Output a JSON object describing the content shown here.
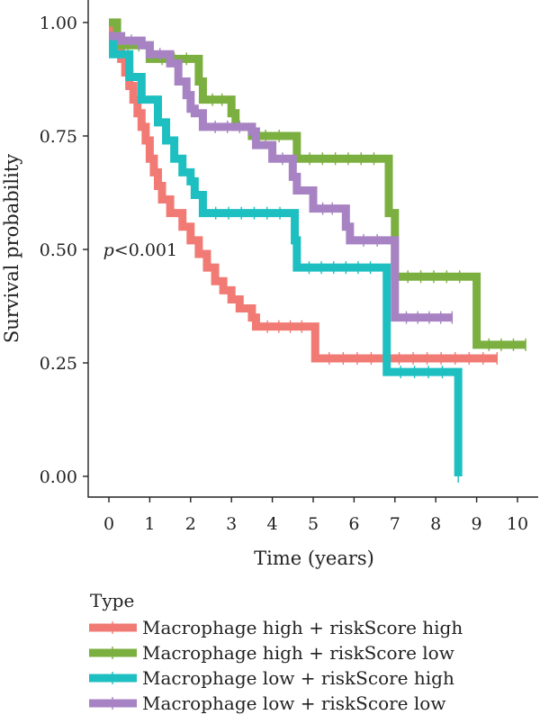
{
  "chart_data": {
    "type": "line",
    "subtype": "kaplan-meier step",
    "xlabel": "Time (years)",
    "ylabel": "Survival probability",
    "xlim": [
      0,
      10
    ],
    "ylim": [
      0,
      1
    ],
    "xticks": [
      "0",
      "1",
      "2",
      "3",
      "4",
      "5",
      "6",
      "7",
      "8",
      "9",
      "10"
    ],
    "yticks": [
      "0.00",
      "0.25",
      "0.50",
      "0.75",
      "1.00"
    ],
    "annotation": {
      "italic": "p",
      "rest": "<0.001",
      "x": 0.3,
      "y": 0.5
    },
    "legend": {
      "title": "Type",
      "placement": "bottom-left"
    },
    "grid": false,
    "series": [
      {
        "name": "Macrophage high + riskScore high",
        "color": "#F17B74",
        "points": [
          [
            0,
            1.0
          ],
          [
            0.1,
            0.97
          ],
          [
            0.2,
            0.95
          ],
          [
            0.3,
            0.92
          ],
          [
            0.4,
            0.89
          ],
          [
            0.5,
            0.86
          ],
          [
            0.6,
            0.83
          ],
          [
            0.7,
            0.8
          ],
          [
            0.8,
            0.77
          ],
          [
            0.9,
            0.74
          ],
          [
            1.0,
            0.7
          ],
          [
            1.1,
            0.67
          ],
          [
            1.2,
            0.64
          ],
          [
            1.3,
            0.61
          ],
          [
            1.5,
            0.58
          ],
          [
            1.8,
            0.55
          ],
          [
            2.0,
            0.52
          ],
          [
            2.2,
            0.49
          ],
          [
            2.4,
            0.46
          ],
          [
            2.6,
            0.43
          ],
          [
            2.8,
            0.41
          ],
          [
            3.0,
            0.39
          ],
          [
            3.2,
            0.37
          ],
          [
            3.5,
            0.35
          ],
          [
            3.6,
            0.33
          ],
          [
            5.0,
            0.33
          ],
          [
            5.05,
            0.26
          ],
          [
            9.5,
            0.26
          ]
        ]
      },
      {
        "name": "Macrophage high + riskScore low",
        "color": "#7BAF3F",
        "points": [
          [
            0,
            1.0
          ],
          [
            0.2,
            0.95
          ],
          [
            1.0,
            0.92
          ],
          [
            2.2,
            0.87
          ],
          [
            2.3,
            0.83
          ],
          [
            3.0,
            0.8
          ],
          [
            3.1,
            0.77
          ],
          [
            3.5,
            0.75
          ],
          [
            4.5,
            0.75
          ],
          [
            4.6,
            0.7
          ],
          [
            6.8,
            0.7
          ],
          [
            6.85,
            0.58
          ],
          [
            7.0,
            0.44
          ],
          [
            8.9,
            0.44
          ],
          [
            9.0,
            0.29
          ],
          [
            10.2,
            0.29
          ]
        ]
      },
      {
        "name": "Macrophage low + riskScore high",
        "color": "#1EBFC1",
        "points": [
          [
            0,
            0.97
          ],
          [
            0.1,
            0.93
          ],
          [
            0.5,
            0.88
          ],
          [
            0.8,
            0.83
          ],
          [
            1.2,
            0.78
          ],
          [
            1.4,
            0.74
          ],
          [
            1.6,
            0.7
          ],
          [
            1.8,
            0.67
          ],
          [
            2.0,
            0.65
          ],
          [
            2.1,
            0.62
          ],
          [
            2.3,
            0.58
          ],
          [
            4.5,
            0.58
          ],
          [
            4.55,
            0.52
          ],
          [
            4.6,
            0.46
          ],
          [
            6.7,
            0.46
          ],
          [
            6.8,
            0.23
          ],
          [
            8.5,
            0.23
          ],
          [
            8.55,
            0.0
          ]
        ]
      },
      {
        "name": "Macrophage low + riskScore low",
        "color": "#A883C3",
        "points": [
          [
            0,
            0.97
          ],
          [
            0.3,
            0.96
          ],
          [
            0.8,
            0.95
          ],
          [
            1.0,
            0.93
          ],
          [
            1.5,
            0.91
          ],
          [
            1.7,
            0.87
          ],
          [
            1.9,
            0.84
          ],
          [
            2.0,
            0.81
          ],
          [
            2.1,
            0.8
          ],
          [
            2.3,
            0.77
          ],
          [
            3.5,
            0.76
          ],
          [
            3.6,
            0.73
          ],
          [
            4.0,
            0.7
          ],
          [
            4.5,
            0.66
          ],
          [
            4.6,
            0.63
          ],
          [
            5.0,
            0.59
          ],
          [
            5.7,
            0.59
          ],
          [
            5.8,
            0.55
          ],
          [
            5.9,
            0.52
          ],
          [
            6.9,
            0.52
          ],
          [
            7.0,
            0.35
          ],
          [
            8.4,
            0.35
          ]
        ]
      }
    ]
  }
}
